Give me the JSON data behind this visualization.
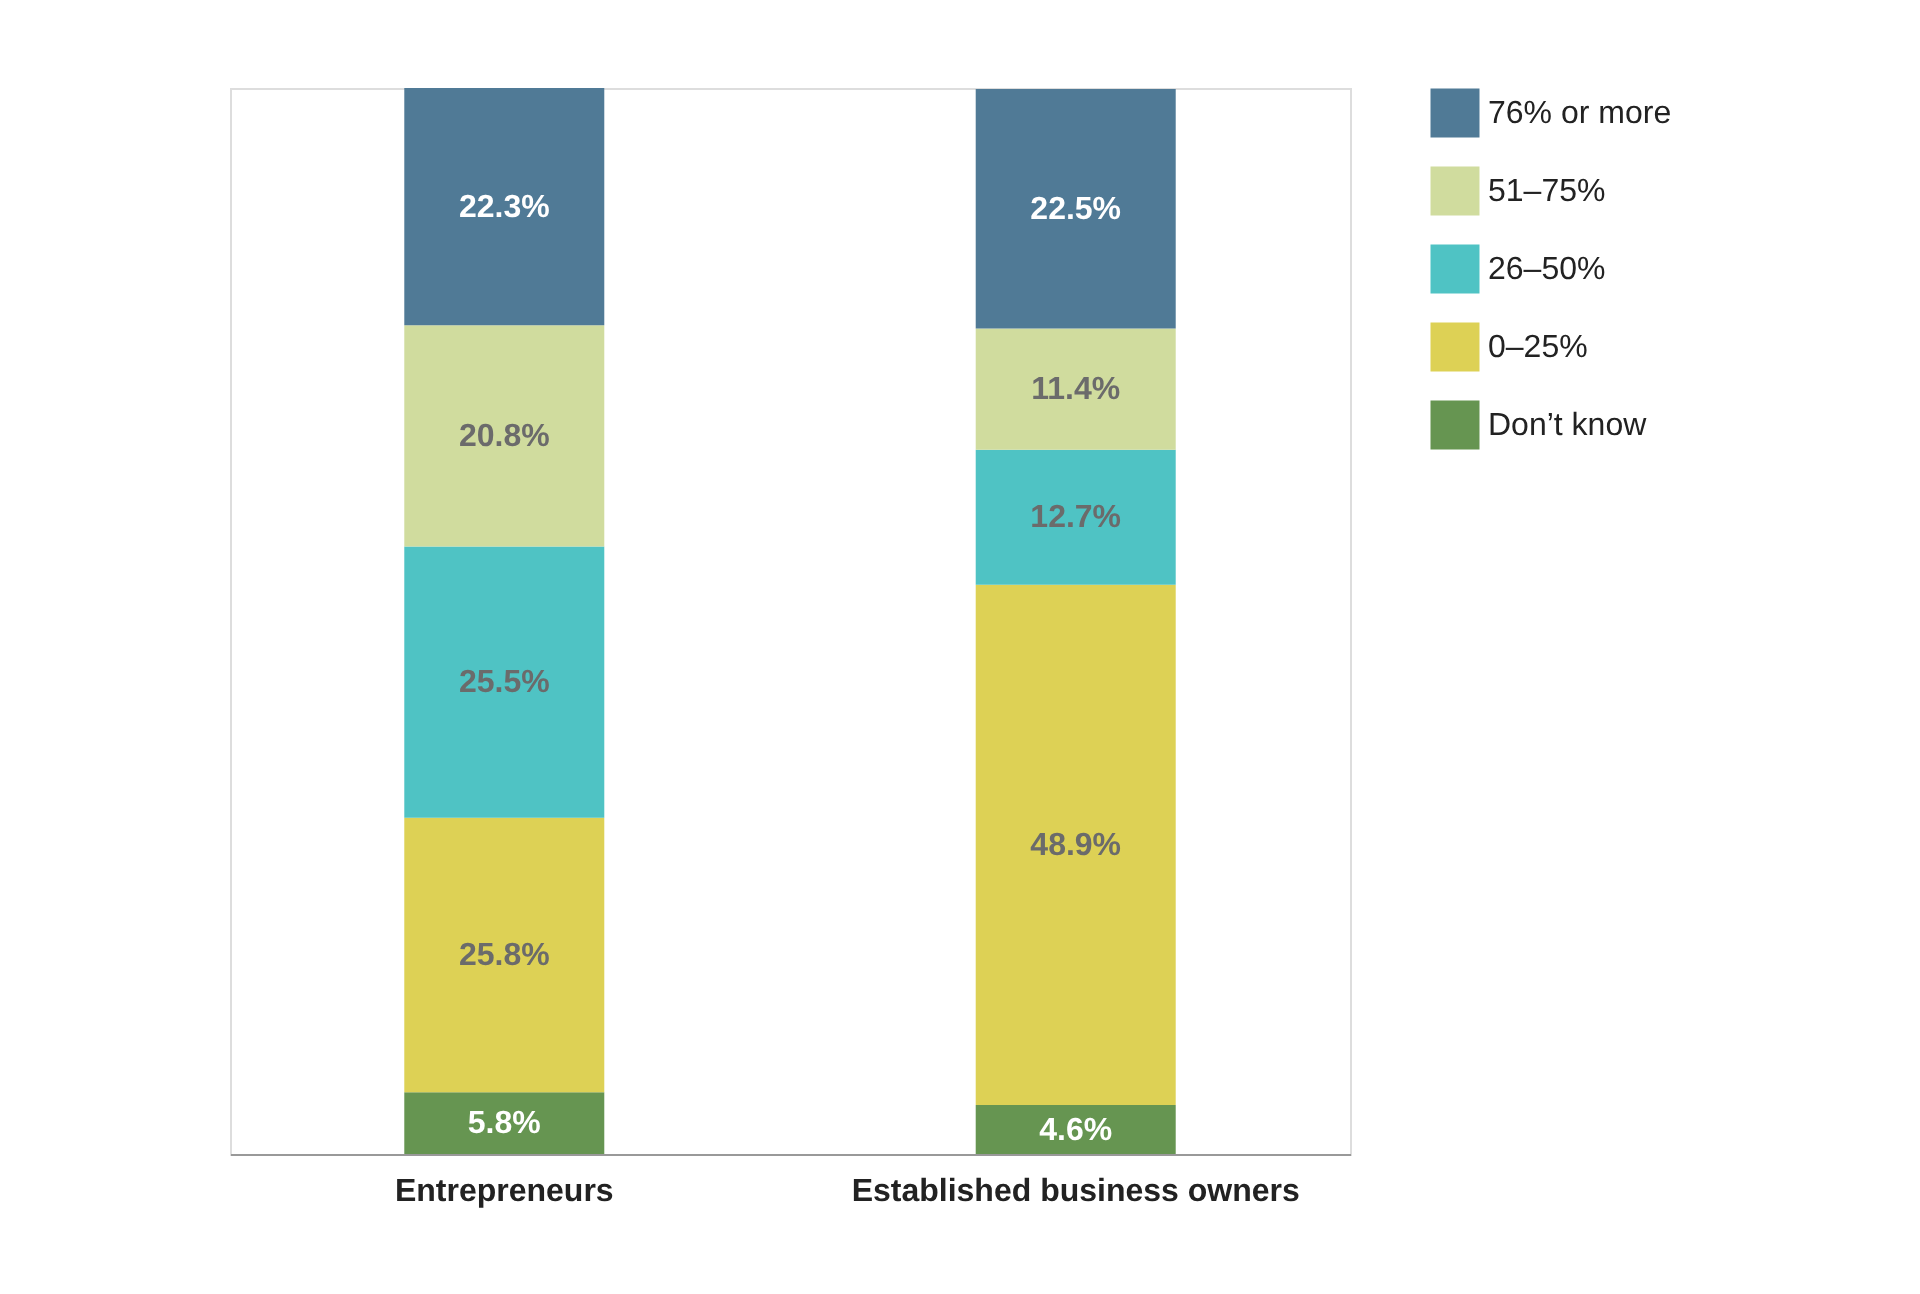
{
  "chart_data": {
    "type": "bar",
    "stacked": true,
    "categories": [
      "Entrepreneurs",
      "Established business owners"
    ],
    "series": [
      {
        "name": "Don’t know",
        "color": "#669551",
        "values": [
          5.8,
          4.6
        ],
        "value_labels": [
          "5.8%",
          "4.6%"
        ]
      },
      {
        "name": "0–25%",
        "color": "#ddd155",
        "values": [
          25.8,
          48.9
        ],
        "value_labels": [
          "25.8%",
          "48.9%"
        ]
      },
      {
        "name": "26–50%",
        "color": "#4fc3c4",
        "values": [
          25.5,
          12.7
        ],
        "value_labels": [
          "25.5%",
          "12.7%"
        ]
      },
      {
        "name": "51–75%",
        "color": "#d0dc9e",
        "values": [
          20.8,
          11.4
        ],
        "value_labels": [
          "20.8%",
          "11.4%"
        ]
      },
      {
        "name": "76% or more",
        "color": "#507a96",
        "values": [
          22.3,
          22.5
        ],
        "value_labels": [
          "22.3%",
          "22.5%"
        ]
      }
    ],
    "legend": "right",
    "grid": false
  }
}
